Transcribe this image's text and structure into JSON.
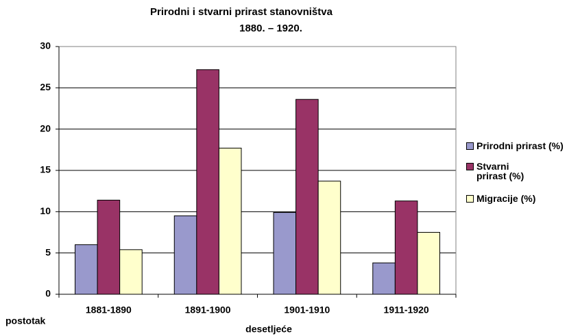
{
  "chart_data": {
    "type": "bar",
    "title": "Prirodni i stvarni prirast stanovništva",
    "subtitle": "1880. – 1920.",
    "x_label": "desetljeće",
    "y_label": "postotak",
    "categories": [
      "1881-1890",
      "1891-1900",
      "1901-1910",
      "1911-1920"
    ],
    "series": [
      {
        "name": "Prirodni prirast (%)",
        "color": "#9999cc",
        "values": [
          6.0,
          9.5,
          9.9,
          3.8
        ]
      },
      {
        "name": "Stvarni prirast (%)",
        "color": "#993366",
        "values": [
          11.4,
          27.2,
          23.6,
          11.3
        ]
      },
      {
        "name": "Migracije (%)",
        "color": "#ffffcc",
        "values": [
          5.4,
          17.7,
          13.7,
          7.5
        ]
      }
    ],
    "ylim": [
      0,
      30
    ],
    "yticks": [
      0,
      5,
      10,
      15,
      20,
      25,
      30
    ],
    "grid": true,
    "legend": "right"
  }
}
